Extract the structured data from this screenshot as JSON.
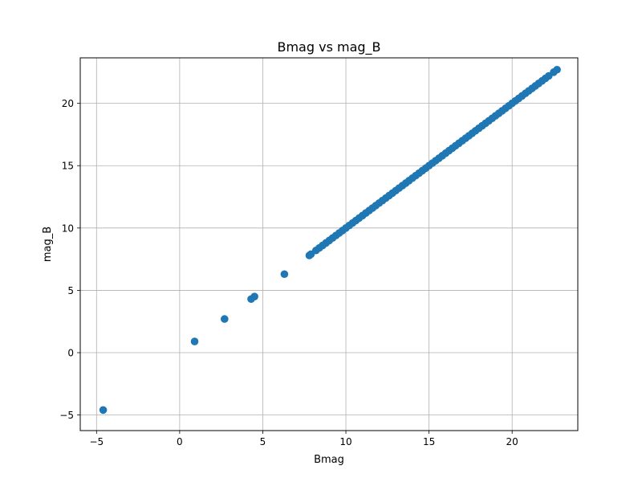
{
  "chart_data": {
    "type": "scatter",
    "title": "Bmag vs mag_B",
    "xlabel": "Bmag",
    "ylabel": "mag_B",
    "xlim": [
      -5.98,
      23.95
    ],
    "ylim": [
      -6.25,
      23.65
    ],
    "xticks": [
      -5,
      0,
      5,
      10,
      15,
      20
    ],
    "yticks": [
      -5,
      0,
      5,
      10,
      15,
      20
    ],
    "xtick_labels": [
      "−5",
      "0",
      "5",
      "10",
      "15",
      "20"
    ],
    "ytick_labels": [
      "−5",
      "0",
      "5",
      "10",
      "15",
      "20"
    ],
    "grid": true,
    "marker_color": "#1f77b4",
    "series": [
      {
        "x": [
          -4.6,
          0.9,
          2.7,
          4.3,
          4.5,
          6.3,
          7.8,
          7.9,
          8.2,
          8.4,
          8.6,
          8.8,
          9.0,
          9.2,
          9.4,
          9.6,
          9.8,
          10.0,
          10.2,
          10.4,
          10.6,
          10.8,
          11.0,
          11.2,
          11.4,
          11.6,
          11.8,
          12.0,
          12.2,
          12.4,
          12.6,
          12.8,
          13.0,
          13.2,
          13.4,
          13.6,
          13.8,
          14.0,
          14.2,
          14.4,
          14.6,
          14.8,
          15.0,
          15.2,
          15.4,
          15.6,
          15.8,
          16.0,
          16.2,
          16.4,
          16.6,
          16.8,
          17.0,
          17.2,
          17.4,
          17.6,
          17.8,
          18.0,
          18.2,
          18.4,
          18.6,
          18.8,
          19.0,
          19.2,
          19.4,
          19.6,
          19.8,
          20.0,
          20.2,
          20.4,
          20.6,
          20.8,
          21.0,
          21.2,
          21.4,
          21.6,
          21.8,
          22.0,
          22.2,
          22.5,
          22.7
        ],
        "y": [
          -4.6,
          0.9,
          2.7,
          4.3,
          4.5,
          6.3,
          7.8,
          7.9,
          8.2,
          8.4,
          8.6,
          8.8,
          9.0,
          9.2,
          9.4,
          9.6,
          9.8,
          10.0,
          10.2,
          10.4,
          10.6,
          10.8,
          11.0,
          11.2,
          11.4,
          11.6,
          11.8,
          12.0,
          12.2,
          12.4,
          12.6,
          12.8,
          13.0,
          13.2,
          13.4,
          13.6,
          13.8,
          14.0,
          14.2,
          14.4,
          14.6,
          14.8,
          15.0,
          15.2,
          15.4,
          15.6,
          15.8,
          16.0,
          16.2,
          16.4,
          16.6,
          16.8,
          17.0,
          17.2,
          17.4,
          17.6,
          17.8,
          18.0,
          18.2,
          18.4,
          18.6,
          18.8,
          19.0,
          19.2,
          19.4,
          19.6,
          19.8,
          20.0,
          20.2,
          20.4,
          20.6,
          20.8,
          21.0,
          21.2,
          21.4,
          21.6,
          21.8,
          22.0,
          22.2,
          22.5,
          22.7
        ]
      }
    ]
  }
}
